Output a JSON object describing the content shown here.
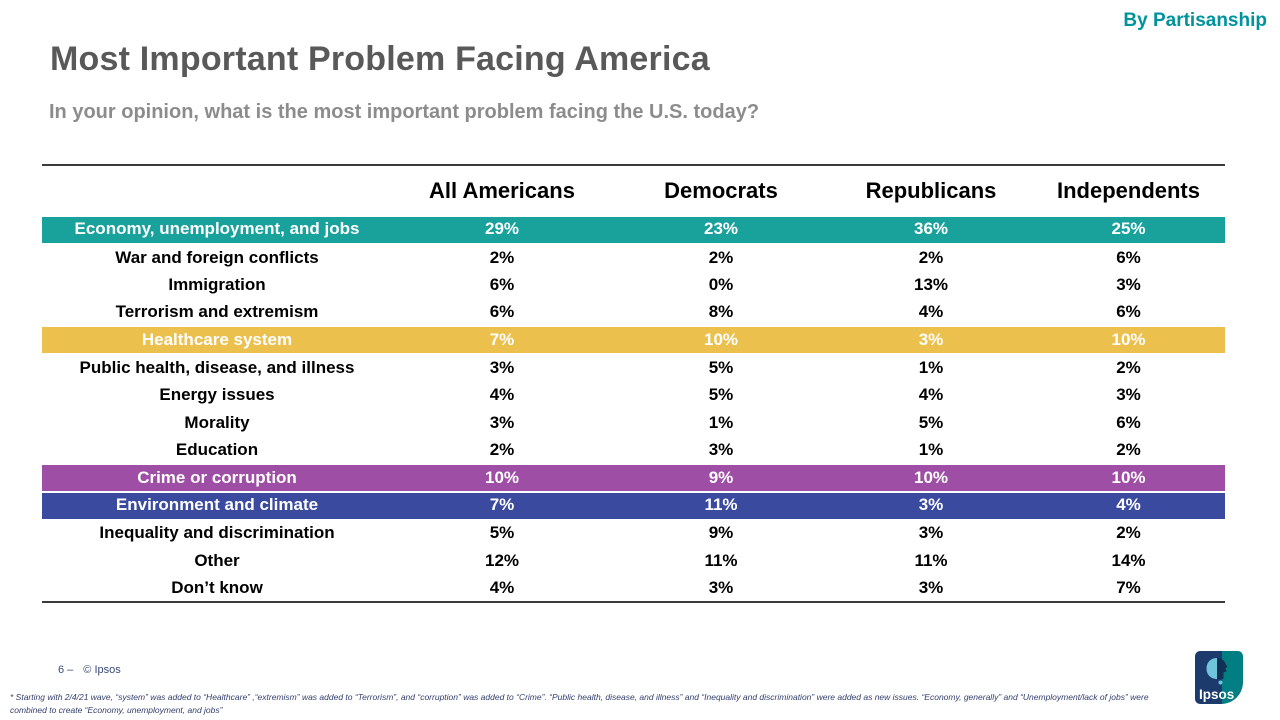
{
  "header": {
    "tag": "By Partisanship",
    "title": "Most Important Problem Facing America",
    "subtitle": "In your opinion, what is the most important problem facing the U.S. today?"
  },
  "chart_data": {
    "type": "table",
    "title": "Most Important Problem Facing America",
    "subtitle": "In your opinion, what is the most important problem facing the U.S. today?",
    "columns": [
      "All Americans",
      "Democrats",
      "Republicans",
      "Independents"
    ],
    "rows": [
      {
        "label": "Economy, unemployment, and jobs",
        "values": [
          "29%",
          "23%",
          "36%",
          "25%"
        ],
        "highlight": "teal"
      },
      {
        "label": "War and foreign conflicts",
        "values": [
          "2%",
          "2%",
          "2%",
          "6%"
        ],
        "highlight": null
      },
      {
        "label": "Immigration",
        "values": [
          "6%",
          "0%",
          "13%",
          "3%"
        ],
        "highlight": null
      },
      {
        "label": "Terrorism and extremism",
        "values": [
          "6%",
          "8%",
          "4%",
          "6%"
        ],
        "highlight": null
      },
      {
        "label": "Healthcare system",
        "values": [
          "7%",
          "10%",
          "3%",
          "10%"
        ],
        "highlight": "yellow"
      },
      {
        "label": "Public health, disease, and illness",
        "values": [
          "3%",
          "5%",
          "1%",
          "2%"
        ],
        "highlight": null
      },
      {
        "label": "Energy issues",
        "values": [
          "4%",
          "5%",
          "4%",
          "3%"
        ],
        "highlight": null
      },
      {
        "label": "Morality",
        "values": [
          "3%",
          "1%",
          "5%",
          "6%"
        ],
        "highlight": null
      },
      {
        "label": "Education",
        "values": [
          "2%",
          "3%",
          "1%",
          "2%"
        ],
        "highlight": null
      },
      {
        "label": "Crime or corruption",
        "values": [
          "10%",
          "9%",
          "10%",
          "10%"
        ],
        "highlight": "purple"
      },
      {
        "label": "Environment and climate",
        "values": [
          "7%",
          "11%",
          "3%",
          "4%"
        ],
        "highlight": "blue"
      },
      {
        "label": "Inequality and discrimination",
        "values": [
          "5%",
          "9%",
          "3%",
          "2%"
        ],
        "highlight": null
      },
      {
        "label": "Other",
        "values": [
          "12%",
          "11%",
          "11%",
          "14%"
        ],
        "highlight": null
      },
      {
        "label": "Don’t know",
        "values": [
          "4%",
          "3%",
          "3%",
          "7%"
        ],
        "highlight": null
      }
    ],
    "highlight_colors": {
      "teal": "#18A29B",
      "yellow": "#EBC04D",
      "purple": "#9E4FA5",
      "blue": "#3A4A9F"
    },
    "legend_position": "none",
    "grid": false
  },
  "colors": {
    "teal": "#18A29B",
    "yellow": "#EBC04D",
    "purple": "#9E4FA5",
    "blue": "#3A4A9F",
    "tag_teal": "#00939E",
    "rule": "#3B3B3B",
    "logo_navy": "#1C3A6B",
    "logo_teal": "#007E82"
  },
  "footer": {
    "page_number": "6 –",
    "copyright": "© Ipsos",
    "footnote_line1": "* Starting with 2/4/21 wave, “system” was added to “Healthcare” ,“extremism”  was added to “Terrorism”, and “corruption” was added to “Crime”. “Public health, disease, and illness”  and “Inequality and discrimination” were  added as new issues. “Economy, generally” and “Unemployment/lack of jobs” were",
    "footnote_line2": "combined to create  “Economy, unemployment, and jobs”",
    "logo_text": "Ipsos"
  }
}
